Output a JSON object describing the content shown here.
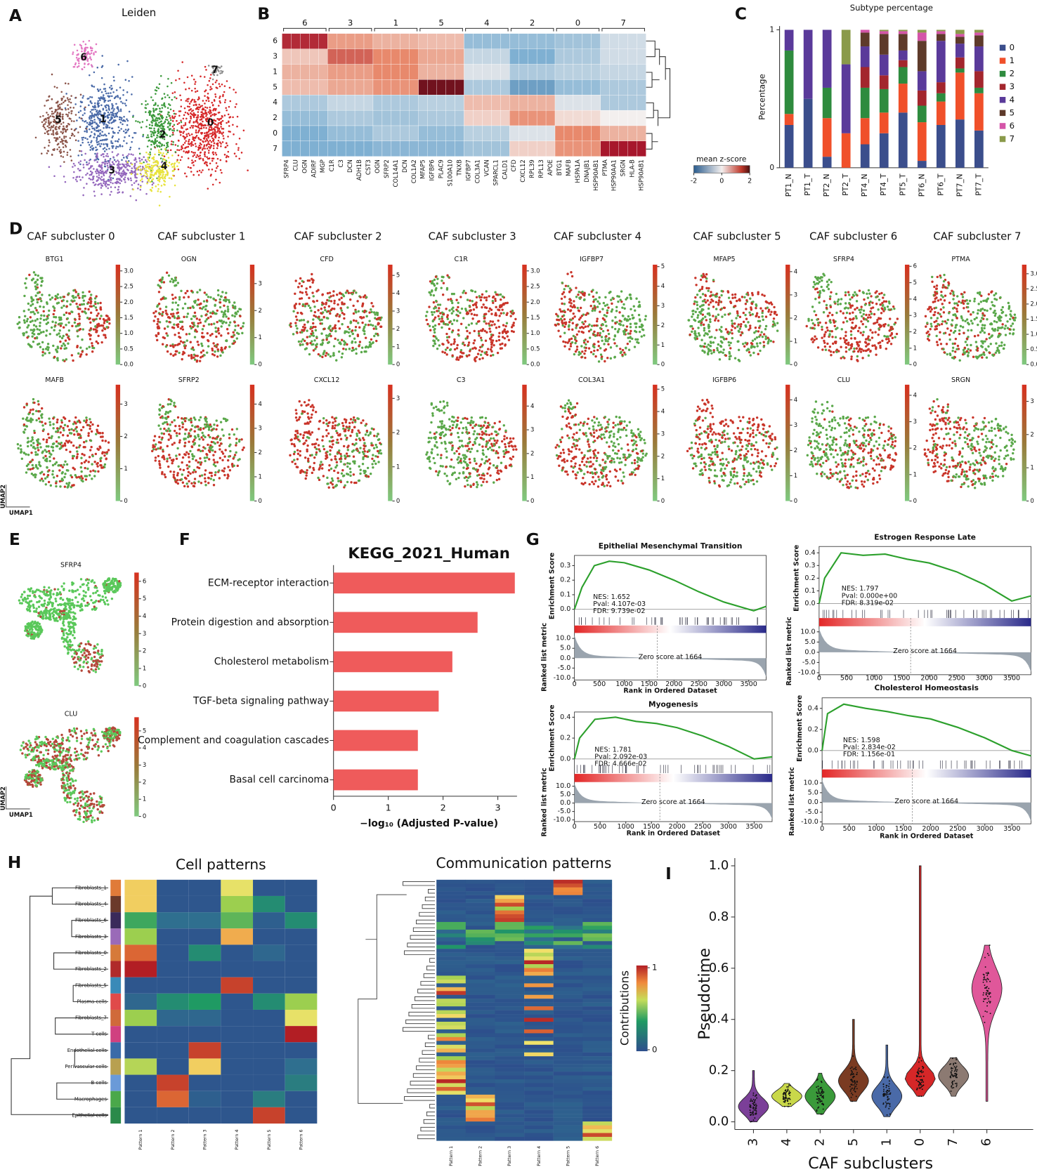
{
  "panel_labels": [
    "A",
    "B",
    "C",
    "D",
    "E",
    "F",
    "G",
    "H",
    "I"
  ],
  "chart_data": [
    {
      "type": "cluster_umap",
      "title": "Leiden",
      "clusters": [
        "0",
        "1",
        "2",
        "3",
        "4",
        "5",
        "6",
        "7"
      ],
      "colors": [
        "#d62728",
        "#4a6aa8",
        "#3c9a3c",
        "#9467bd",
        "#e8e33c",
        "#8c564b",
        "#e377c2",
        "#8a8a8a"
      ]
    },
    {
      "type": "matrixplot",
      "rows": [
        "6",
        "3",
        "1",
        "5",
        "4",
        "2",
        "0",
        "7"
      ],
      "groups": [
        "6",
        "3",
        "1",
        "5",
        "4",
        "2",
        "0",
        "7"
      ],
      "genes": [
        "SFRP4",
        "CLU",
        "OGN",
        "ADIRF",
        "MGP",
        "C1R",
        "C3",
        "DCN",
        "ADH1B",
        "CST3",
        "OGN",
        "SFRP2",
        "COL14A1",
        "DCN",
        "COL1A2",
        "MFAP5",
        "IGFBP6",
        "PLAC9",
        "S100A10",
        "TNXB",
        "IGFBP7",
        "COL3A1",
        "VCAN",
        "SPARCL1",
        "CALD1",
        "CFD",
        "CXCL12",
        "RPL39",
        "RPL13",
        "APOE",
        "BTG1",
        "MAFB",
        "HSPA1A",
        "DNAJB1",
        "HSP90AB1",
        "PTMA",
        "HSP90AA1",
        "SRGN",
        "HLA-B",
        "HSP90AB1"
      ],
      "group_means": [
        [
          1.5,
          0.8,
          0.6,
          0.5,
          -0.8,
          -0.8,
          -0.7,
          -0.3
        ],
        [
          0.4,
          1.2,
          1.0,
          0.7,
          -0.4,
          -1.0,
          -0.6,
          -0.3
        ],
        [
          0.6,
          0.8,
          1.0,
          0.6,
          -0.2,
          -0.6,
          -0.5,
          -0.4
        ],
        [
          0.5,
          0.7,
          0.9,
          1.8,
          -0.6,
          -1.2,
          -0.8,
          -0.6
        ],
        [
          -0.6,
          -0.4,
          -0.6,
          -0.5,
          0.5,
          0.6,
          -0.2,
          -0.6
        ],
        [
          -0.8,
          -0.6,
          -0.7,
          -0.6,
          0.3,
          0.9,
          0.2,
          0.0
        ],
        [
          -1.0,
          -0.8,
          -0.6,
          -0.8,
          -0.5,
          -0.2,
          1.0,
          0.6
        ],
        [
          -1.0,
          -1.0,
          -0.9,
          -0.9,
          -0.7,
          0.3,
          0.9,
          1.6
        ]
      ],
      "colorbar_label": "mean z-score",
      "clim": [
        -2,
        2
      ],
      "colorbar_ticks": [
        -2,
        0,
        2
      ]
    },
    {
      "type": "stacked_bar",
      "title": "Subtype percentage",
      "ylabel": "Percentage",
      "categories": [
        "PT1_N",
        "PT1_T",
        "PT2_N",
        "PT2_T",
        "PT4_N",
        "PT4_T",
        "PT5_T",
        "PT6_N",
        "PT6_T",
        "PT7_N",
        "PT7_T"
      ],
      "series": [
        {
          "name": "0",
          "color": "#3b4e8c",
          "values": [
            0.31,
            0.5,
            0.08,
            0,
            0.17,
            0.25,
            0.4,
            0.05,
            0.31,
            0.35,
            0.27
          ]
        },
        {
          "name": "1",
          "color": "#f0502a",
          "values": [
            0.08,
            0,
            0.28,
            0.25,
            0.19,
            0.15,
            0.21,
            0.28,
            0.17,
            0.34,
            0.27
          ]
        },
        {
          "name": "2",
          "color": "#2e8b3e",
          "values": [
            0.46,
            0,
            0.22,
            0,
            0.22,
            0.17,
            0.12,
            0.12,
            0.06,
            0.03,
            0.04
          ]
        },
        {
          "name": "3",
          "color": "#a3262d",
          "values": [
            0,
            0,
            0,
            0,
            0.15,
            0.1,
            0.05,
            0.11,
            0.08,
            0.08,
            0.12
          ]
        },
        {
          "name": "4",
          "color": "#5a3a9a",
          "values": [
            0.15,
            0.5,
            0.42,
            0.5,
            0.15,
            0.15,
            0.07,
            0.14,
            0.3,
            0.1,
            0.18
          ]
        },
        {
          "name": "5",
          "color": "#5e3a2a",
          "values": [
            0,
            0,
            0,
            0,
            0.1,
            0.15,
            0.12,
            0.22,
            0.05,
            0.05,
            0.08
          ]
        },
        {
          "name": "6",
          "color": "#d455a8",
          "values": [
            0,
            0,
            0,
            0,
            0.02,
            0.02,
            0.02,
            0.06,
            0.02,
            0.02,
            0.02
          ]
        },
        {
          "name": "7",
          "color": "#8a9a4a",
          "values": [
            0,
            0,
            0,
            0.25,
            0,
            0.01,
            0.01,
            0.02,
            0.01,
            0.03,
            0.02
          ]
        }
      ],
      "ylim": [
        0,
        1
      ],
      "yticks": [
        0,
        1
      ]
    },
    {
      "type": "feature_umaps",
      "subclusters": [
        "CAF subcluster 0",
        "CAF subcluster 1",
        "CAF subcluster 2",
        "CAF subcluster 3",
        "CAF subcluster 4",
        "CAF subcluster 5",
        "CAF subcluster 6",
        "CAF subcluster 7"
      ],
      "axis_labels": [
        "UMAP2",
        "UMAP1"
      ],
      "plots": [
        {
          "gene": "BTG1",
          "clim": [
            0,
            3.2
          ],
          "ticks": [
            {
              "value": 0,
              "label": "0.0"
            },
            0.5,
            {
              "value": 1,
              "label": "1.0"
            },
            1.5,
            {
              "value": 2,
              "label": "2.0"
            },
            2.5,
            {
              "value": 3,
              "label": "3.0"
            }
          ]
        },
        {
          "gene": "OGN",
          "clim": [
            0,
            3.7
          ],
          "ticks": [
            0,
            1,
            2,
            3
          ]
        },
        {
          "gene": "CFD",
          "clim": [
            0,
            5.6
          ],
          "ticks": [
            0,
            1,
            2,
            3,
            4,
            5
          ]
        },
        {
          "gene": "C1R",
          "clim": [
            0,
            3.2
          ],
          "ticks": [
            {
              "value": 0,
              "label": "0.0"
            },
            0.5,
            {
              "value": 1,
              "label": "1.0"
            },
            1.5,
            {
              "value": 2,
              "label": "2.0"
            },
            2.5,
            {
              "value": 3,
              "label": "3.0"
            }
          ]
        },
        {
          "gene": "IGFBP7",
          "clim": [
            0,
            5.1
          ],
          "ticks": [
            0,
            1,
            2,
            3,
            4,
            5
          ]
        },
        {
          "gene": "MFAP5",
          "clim": [
            0,
            4.3
          ],
          "ticks": [
            0,
            1,
            2,
            3,
            4
          ]
        },
        {
          "gene": "SFRP4",
          "clim": [
            0,
            6.1
          ],
          "ticks": [
            0,
            1,
            2,
            3,
            4,
            5,
            6
          ]
        },
        {
          "gene": "PTMA",
          "clim": [
            0,
            3.3
          ],
          "ticks": [
            {
              "value": 0,
              "label": "0.0"
            },
            0.5,
            {
              "value": 1,
              "label": "1.0"
            },
            1.5,
            {
              "value": 2,
              "label": "2.0"
            },
            2.5,
            {
              "value": 3,
              "label": "3.0"
            }
          ]
        },
        {
          "gene": "MAFB",
          "clim": [
            0,
            3.6
          ],
          "ticks": [
            0,
            1,
            2,
            3
          ]
        },
        {
          "gene": "SFRP2",
          "clim": [
            0,
            4.8
          ],
          "ticks": [
            0,
            1,
            2,
            3,
            4
          ]
        },
        {
          "gene": "CXCL12",
          "clim": [
            0,
            3.4
          ],
          "ticks": [
            0,
            1,
            2,
            3
          ]
        },
        {
          "gene": "C3",
          "clim": [
            0,
            4.9
          ],
          "ticks": [
            0,
            1,
            2,
            3,
            4
          ]
        },
        {
          "gene": "COL3A1",
          "clim": [
            0,
            5.2
          ],
          "ticks": [
            0,
            1,
            2,
            3,
            4,
            5
          ]
        },
        {
          "gene": "IGFBP6",
          "clim": [
            0,
            4.6
          ],
          "ticks": [
            0,
            1,
            2,
            3,
            4
          ]
        },
        {
          "gene": "CLU",
          "clim": [
            0,
            4.4
          ],
          "ticks": [
            0,
            1,
            2,
            3,
            4
          ]
        },
        {
          "gene": "SRGN",
          "clim": [
            0,
            3.5
          ],
          "ticks": [
            0,
            1,
            2,
            3
          ]
        }
      ]
    },
    {
      "type": "feature_umaps_full",
      "axis_labels": [
        "UMAP2",
        "UMAP1"
      ],
      "plots": [
        {
          "gene": "SFRP4",
          "clim": [
            0,
            6.5
          ],
          "ticks": [
            0,
            1,
            2,
            3,
            4,
            5,
            6
          ]
        },
        {
          "gene": "CLU",
          "clim": [
            0,
            5.8
          ],
          "ticks": [
            0,
            1,
            2,
            3,
            4,
            5
          ]
        }
      ]
    },
    {
      "type": "hbar",
      "title": "KEGG_2021_Human",
      "categories": [
        "ECM-receptor interaction",
        "Protein digestion and absorption",
        "Cholesterol metabolism",
        "TGF-beta signaling pathway",
        "Complement and coagulation cascades",
        "Basal cell carcinoma"
      ],
      "values": [
        3.31,
        2.63,
        2.17,
        1.92,
        1.54,
        1.54
      ],
      "color": "#ef5b5b",
      "xlim": [
        0,
        3.35
      ],
      "xticks": [
        0,
        1,
        2,
        3
      ],
      "xlabel": "−log₁₀ (Adjusted P-value)"
    },
    {
      "type": "gsea",
      "ylabel": "Enrichment Score",
      "metric_label": "Ranked list metric",
      "xlabel": "Rank in Ordered Dataset",
      "zero_label": "Zero score at 1664",
      "zero_rank": 1664,
      "xlim": [
        0,
        3850
      ],
      "xticks": [
        0,
        500,
        1000,
        1500,
        2000,
        2500,
        3000,
        3500
      ],
      "metric_lim": [
        -11,
        12
      ],
      "metric_ticks": [
        {
          "value": 10,
          "label": "10.0"
        },
        {
          "value": 5,
          "label": "5.0"
        },
        {
          "value": 0,
          "label": "0.0"
        },
        {
          "value": -5,
          "label": "-5.0"
        },
        {
          "value": -10,
          "label": "-10.0"
        }
      ],
      "panels": [
        {
          "title": "Epithelial Mesenchymal Transition",
          "stats": [
            "NES: 1.652",
            "Pval: 4.107e-03",
            "FDR: 9.739e-02"
          ],
          "ylim": [
            -0.05,
            0.37
          ],
          "yticks": [
            {
              "value": 0,
              "label": "0.0"
            },
            0.1,
            0.2,
            0.3
          ],
          "x": [
            0,
            150,
            400,
            700,
            1000,
            1500,
            2000,
            2500,
            3000,
            3600,
            3850
          ],
          "es": [
            0,
            0.15,
            0.3,
            0.33,
            0.32,
            0.27,
            0.2,
            0.12,
            0.05,
            -0.01,
            0.02
          ]
        },
        {
          "title": "Estrogen Response Late",
          "stats": [
            "NES: 1.797",
            "Pval: 0.000e+00",
            "FDR: 8.319e-02"
          ],
          "ylim": [
            -0.05,
            0.45
          ],
          "yticks": [
            {
              "value": 0,
              "label": "0.0"
            },
            0.1,
            0.2,
            0.3,
            0.4
          ],
          "x": [
            0,
            100,
            400,
            800,
            1200,
            1600,
            2000,
            2500,
            3000,
            3500,
            3850
          ],
          "es": [
            0,
            0.2,
            0.4,
            0.38,
            0.39,
            0.35,
            0.32,
            0.25,
            0.15,
            0.02,
            0.06
          ]
        },
        {
          "title": "Myogenesis",
          "stats": [
            "NES: 1.781",
            "Pval: 2.092e-03",
            "FDR: 4.666e-02"
          ],
          "ylim": [
            -0.05,
            0.45
          ],
          "yticks": [
            {
              "value": 0,
              "label": "0.0"
            },
            0.2,
            0.4
          ],
          "x": [
            0,
            100,
            400,
            800,
            1200,
            1600,
            2000,
            2500,
            3000,
            3500,
            3850
          ],
          "es": [
            0,
            0.2,
            0.38,
            0.4,
            0.36,
            0.34,
            0.3,
            0.22,
            0.12,
            0,
            0.02
          ]
        },
        {
          "title": "Cholesterol Homeostasis",
          "stats": [
            "NES: 1.598",
            "Pval: 2.834e-02",
            "FDR: 1.156e-01"
          ],
          "ylim": [
            -0.08,
            0.5
          ],
          "yticks": [
            {
              "value": 0,
              "label": "0.0"
            },
            0.2,
            0.4
          ],
          "x": [
            0,
            100,
            400,
            800,
            1200,
            1600,
            2000,
            2500,
            3000,
            3500,
            3850
          ],
          "es": [
            0,
            0.35,
            0.44,
            0.4,
            0.37,
            0.33,
            0.3,
            0.22,
            0.12,
            0,
            -0.05
          ]
        }
      ]
    },
    {
      "type": "pattern_heatmaps",
      "titles": [
        "Cell patterns",
        "Communication patterns"
      ],
      "cell_types": [
        "Fibroblasts_1",
        "Fibroblasts_4",
        "Fibroblasts_6",
        "Fibroblasts_3",
        "Fibroblasts_0",
        "Fibroblasts_2",
        "Fibroblasts_5",
        "Plasma cells",
        "Fibroblasts_7",
        "T cells",
        "Endothelial cells",
        "Perivascular cells",
        "B cells",
        "Macrophages",
        "Epithelial cells"
      ],
      "patterns": [
        "Pattern 1",
        "Pattern 2",
        "Pattern 3",
        "Pattern 4",
        "Pattern 5",
        "Pattern 6"
      ],
      "cell_contributions": [
        [
          0.75,
          0.05,
          0.05,
          0.7,
          0.05,
          0.05
        ],
        [
          0.75,
          0.05,
          0.05,
          0.55,
          0.3,
          0.05
        ],
        [
          0.4,
          0.2,
          0.2,
          0.45,
          0.1,
          0.3
        ],
        [
          0.55,
          0.05,
          0.05,
          0.8,
          0.05,
          0.05
        ],
        [
          0.9,
          0.05,
          0.3,
          0.05,
          0.15,
          0.05
        ],
        [
          1.0,
          0.05,
          0.05,
          0.05,
          0.05,
          0.05
        ],
        [
          0.05,
          0.05,
          0.05,
          0.95,
          0.05,
          0.05
        ],
        [
          0.15,
          0.3,
          0.35,
          0.05,
          0.3,
          0.55
        ],
        [
          0.55,
          0.15,
          0.15,
          0.05,
          0.05,
          0.7
        ],
        [
          0.05,
          0.05,
          0.05,
          0.05,
          0.05,
          1.0
        ],
        [
          0.05,
          0.05,
          0.95,
          0.05,
          0.05,
          0.05
        ],
        [
          0.6,
          0.05,
          0.75,
          0.05,
          0.05,
          0.2
        ],
        [
          0.05,
          0.95,
          0.05,
          0.05,
          0.05,
          0.25
        ],
        [
          0.05,
          0.9,
          0.1,
          0.05,
          0.25,
          0.05
        ],
        [
          0.05,
          0.05,
          0.05,
          0.05,
          0.95,
          0.05
        ]
      ],
      "colorbar_label": "Contributions",
      "colorbar_ticks": [
        0,
        1
      ]
    },
    {
      "type": "violin",
      "ylabel": "Pseudotime",
      "xlabel": "CAF subclusters",
      "categories": [
        "3",
        "4",
        "2",
        "5",
        "1",
        "0",
        "7",
        "6"
      ],
      "colors": [
        "#7b3f98",
        "#c9d84a",
        "#3a9a3a",
        "#7a3b22",
        "#4a6aa8",
        "#d62728",
        "#8c7a72",
        "#e0579a"
      ],
      "medians": [
        0.06,
        0.1,
        0.1,
        0.16,
        0.1,
        0.17,
        0.18,
        0.52
      ],
      "mins": [
        0,
        0.06,
        0.03,
        0.08,
        0.02,
        0.1,
        0.1,
        0.08
      ],
      "maxs": [
        0.2,
        0.15,
        0.19,
        0.4,
        0.3,
        1.0,
        0.25,
        0.69
      ],
      "ylim": [
        -0.03,
        1.03
      ],
      "yticks": [
        {
          "value": 0,
          "label": "0.0"
        },
        0.2,
        0.4,
        0.6,
        0.8,
        {
          "value": 1,
          "label": "1.0"
        }
      ]
    }
  ]
}
